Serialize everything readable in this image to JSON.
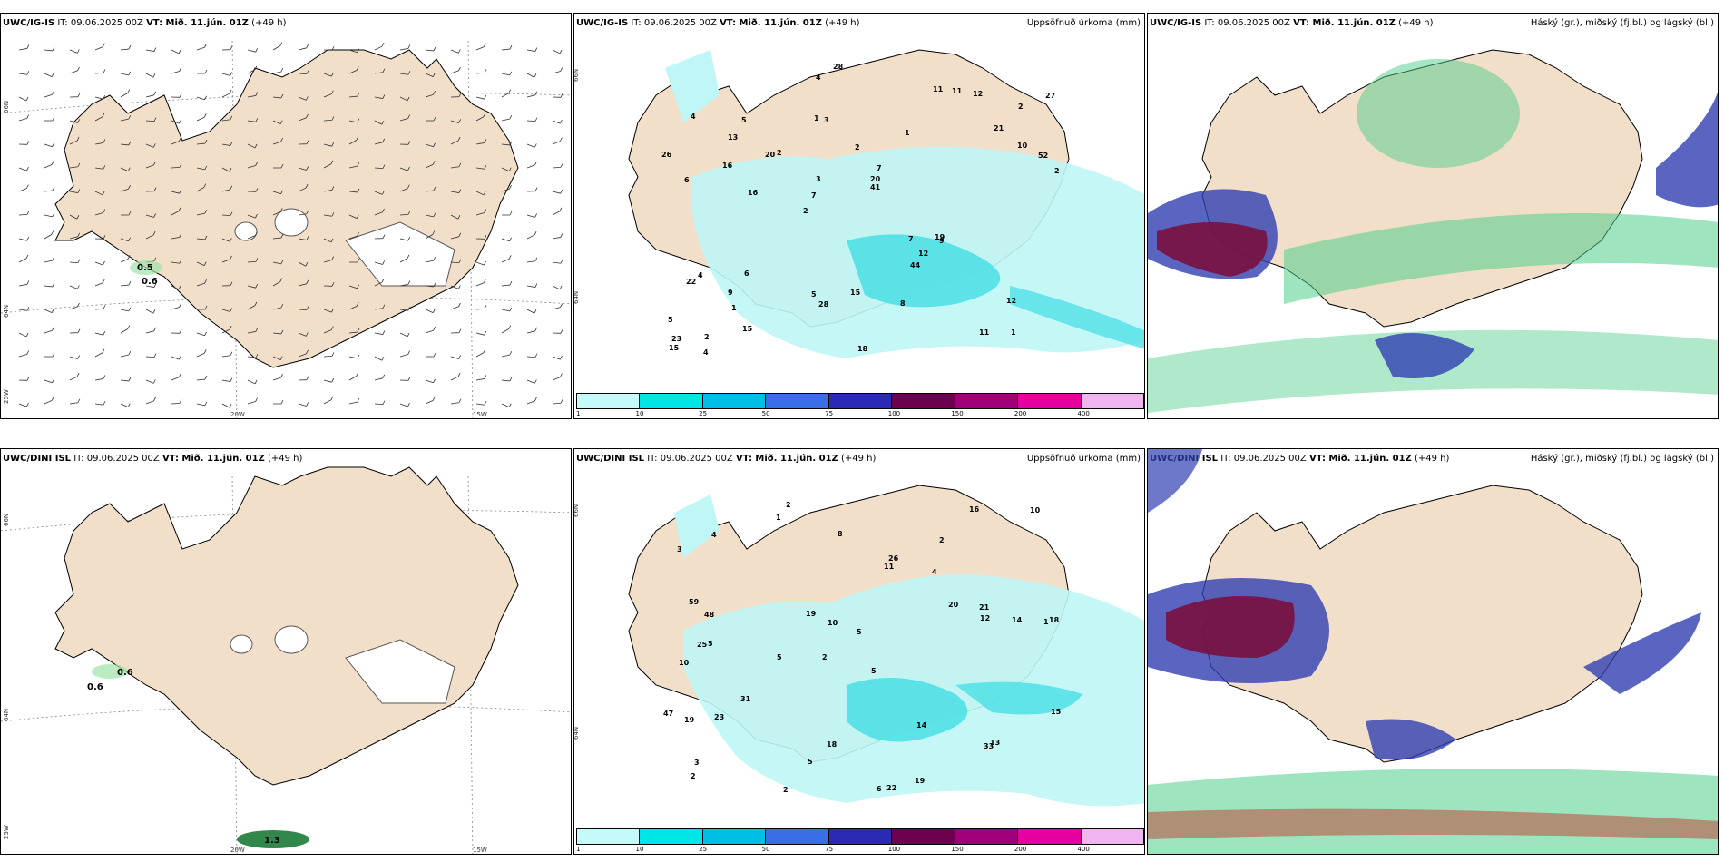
{
  "rows": [
    {
      "wind": {
        "header_model": "UWC/IG-IS",
        "header_it": "IT: 09.06.2025 00Z",
        "header_vt": "VT: Mið. 11.jún. 01Z",
        "header_lead": "(+49 h)"
      },
      "precip": {
        "header_model": "UWC/IG-IS",
        "header_it": "IT: 09.06.2025 00Z",
        "header_vt": "VT: Mið. 11.jún. 01Z",
        "header_lead": "(+49 h)",
        "title": "Uppsöfnuð úrkoma (mm)"
      },
      "cloud": {
        "header_model": "UWC/IG-IS",
        "header_it": "IT: 09.06.2025 00Z",
        "header_vt": "VT: Mið. 11.jún. 01Z",
        "header_lead": "(+49 h)",
        "title": "Háský (gr.), miðský (fj.bl.) og lágský (bl.)"
      }
    },
    {
      "wind": {
        "header_model": "UWC/DINI ISL",
        "header_it": "IT: 09.06.2025 00Z",
        "header_vt": "VT: Mið. 11.jún. 01Z",
        "header_lead": "(+49 h)"
      },
      "precip": {
        "header_model": "UWC/DINI ISL",
        "header_it": "IT: 09.06.2025 00Z",
        "header_vt": "VT: Mið. 11.jún. 01Z",
        "header_lead": "(+49 h)",
        "title": "Uppsöfnuð úrkoma (mm)"
      },
      "cloud": {
        "header_model": "UWC/DINI ISL",
        "header_it": "IT: 09.06.2025 00Z",
        "header_vt": "VT: Mið. 11.jún. 01Z",
        "header_lead": "(+49 h)",
        "title": "Háský (gr.), miðský (fj.bl.) og lágský (bl.)"
      }
    }
  ],
  "axis_labels": {
    "lat_north": "66N",
    "lat_south": "64N",
    "lon_a": "20W",
    "lon_b": "15W",
    "lon_c": "25W"
  },
  "precip_scale": {
    "ticks": [
      "1",
      "10",
      "25",
      "50",
      "75",
      "100",
      "150",
      "200",
      "400"
    ],
    "colors": [
      "#c4fafa",
      "#00e6e6",
      "#00bfe6",
      "#3a6ee6",
      "#2a2ab4",
      "#6e0050",
      "#a0007a",
      "#e600a0",
      "#f0b4f0"
    ]
  },
  "colors": {
    "land": "#f2dfca",
    "precip_light": "#bff6f6",
    "precip_mid": "#4fe0e6",
    "high_cloud": "#4fce8a",
    "mid_cloud": "#2f3fb0",
    "low_cloud": "#7a1040"
  },
  "precip_values_top": [
    "1",
    "6",
    "2",
    "2",
    "1",
    "2",
    "1",
    "2",
    "4",
    "2",
    "5",
    "1",
    "3",
    "7",
    "9",
    "4",
    "4",
    "2",
    "7",
    "10",
    "7",
    "5",
    "3",
    "5",
    "11",
    "6",
    "11",
    "12",
    "19",
    "18",
    "20",
    "16",
    "44",
    "15",
    "52",
    "20",
    "23",
    "28",
    "41",
    "22",
    "21",
    "27",
    "12",
    "8",
    "9",
    "4",
    "15",
    "15",
    "12",
    "28",
    "16",
    "26",
    "13",
    "11"
  ],
  "precip_values_bottom": [
    "2",
    "2",
    "1",
    "2",
    "5",
    "5",
    "3",
    "4",
    "10",
    "11",
    "5",
    "2",
    "1",
    "5",
    "6",
    "22",
    "18",
    "16",
    "20",
    "31",
    "48",
    "25",
    "18",
    "14",
    "47",
    "59",
    "10",
    "12",
    "13",
    "19",
    "33",
    "26",
    "23",
    "19",
    "14",
    "15",
    "21",
    "5",
    "10",
    "8",
    "3",
    "2",
    "19",
    "4"
  ],
  "wind_contours_top": [
    "0.5",
    "0.6"
  ],
  "wind_contours_bottom": [
    "0.6",
    "0.6",
    "1.3"
  ]
}
